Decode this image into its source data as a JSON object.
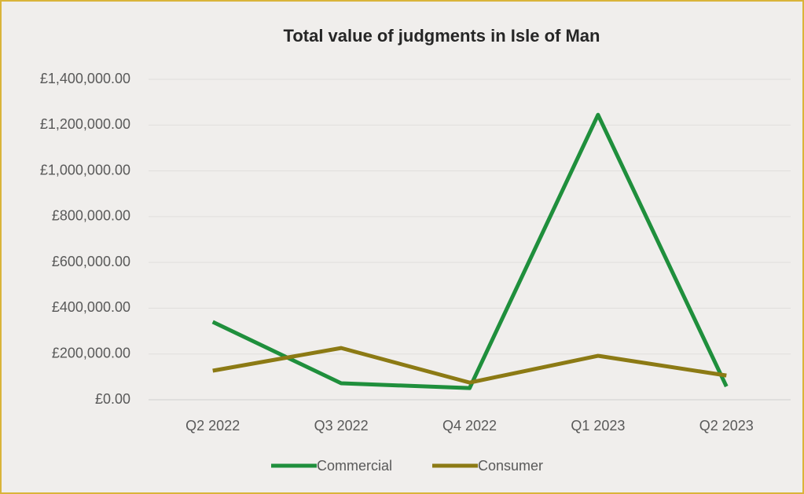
{
  "chart_data": {
    "type": "line",
    "title": "Total value of judgments in Isle of Man",
    "categories": [
      "Q2 2022",
      "Q3 2022",
      "Q4 2022",
      "Q1 2023",
      "Q2 2023"
    ],
    "series": [
      {
        "name": "Commercial",
        "color": "#1f8f3c",
        "values": [
          340000,
          72000,
          51000,
          1245000,
          58000
        ]
      },
      {
        "name": "Consumer",
        "color": "#8c7a14",
        "values": [
          127000,
          226000,
          75000,
          192000,
          106000
        ]
      }
    ],
    "ylim": [
      0,
      1400000
    ],
    "yticks": [
      {
        "value": 0,
        "label": "£0.00"
      },
      {
        "value": 200000,
        "label": "£200,000.00"
      },
      {
        "value": 400000,
        "label": "£400,000.00"
      },
      {
        "value": 600000,
        "label": "£600,000.00"
      },
      {
        "value": 800000,
        "label": "£800,000.00"
      },
      {
        "value": 1000000,
        "label": "£1,000,000.00"
      },
      {
        "value": 1200000,
        "label": "£1,200,000.00"
      },
      {
        "value": 1400000,
        "label": "£1,400,000.00"
      }
    ],
    "grid": true,
    "legend": "bottom"
  }
}
